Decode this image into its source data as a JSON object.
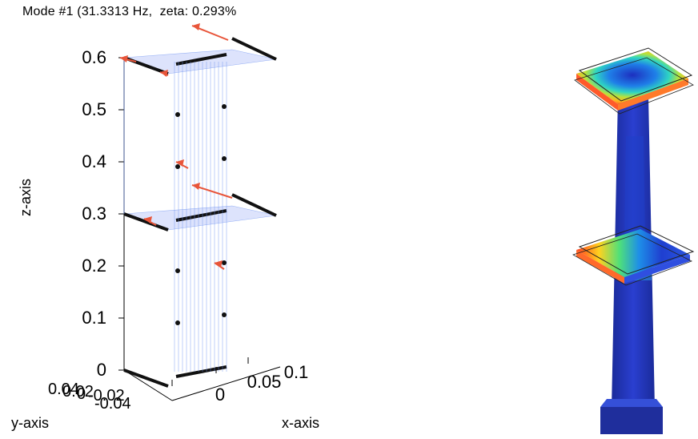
{
  "chart_data": {
    "type": "3d-mode-shape",
    "title": "Mode #1 (31.3313 Hz,  zeta: 0.293%",
    "xlabel": "x-axis",
    "ylabel": "y-axis",
    "zlabel": "z-axis",
    "z_ticks": [
      "0",
      "0.1",
      "0.2",
      "0.3",
      "0.4",
      "0.5",
      "0.6"
    ],
    "x_ticks": [
      "0",
      "0.05",
      "0.1"
    ],
    "y_ticks": [
      "0.04",
      "0.02",
      "0",
      "-0.02",
      "-0.04"
    ],
    "zlim": [
      0,
      0.6
    ],
    "floors_z": [
      0,
      0.3,
      0.6
    ],
    "sensor_z": [
      0,
      0.1,
      0.2,
      0.3,
      0.4,
      0.5,
      0.6
    ],
    "mode_arrows_color": "#e8553a",
    "nodes_color": "#111111",
    "wire_color": "#6a8ff0",
    "plate_color": "#cfd8fb"
  },
  "model_image": {
    "colors": {
      "structure": "#1e2fa8",
      "low": "#1f3fd0",
      "mid": "#2ecc71",
      "high": "#ff3b1f"
    }
  }
}
